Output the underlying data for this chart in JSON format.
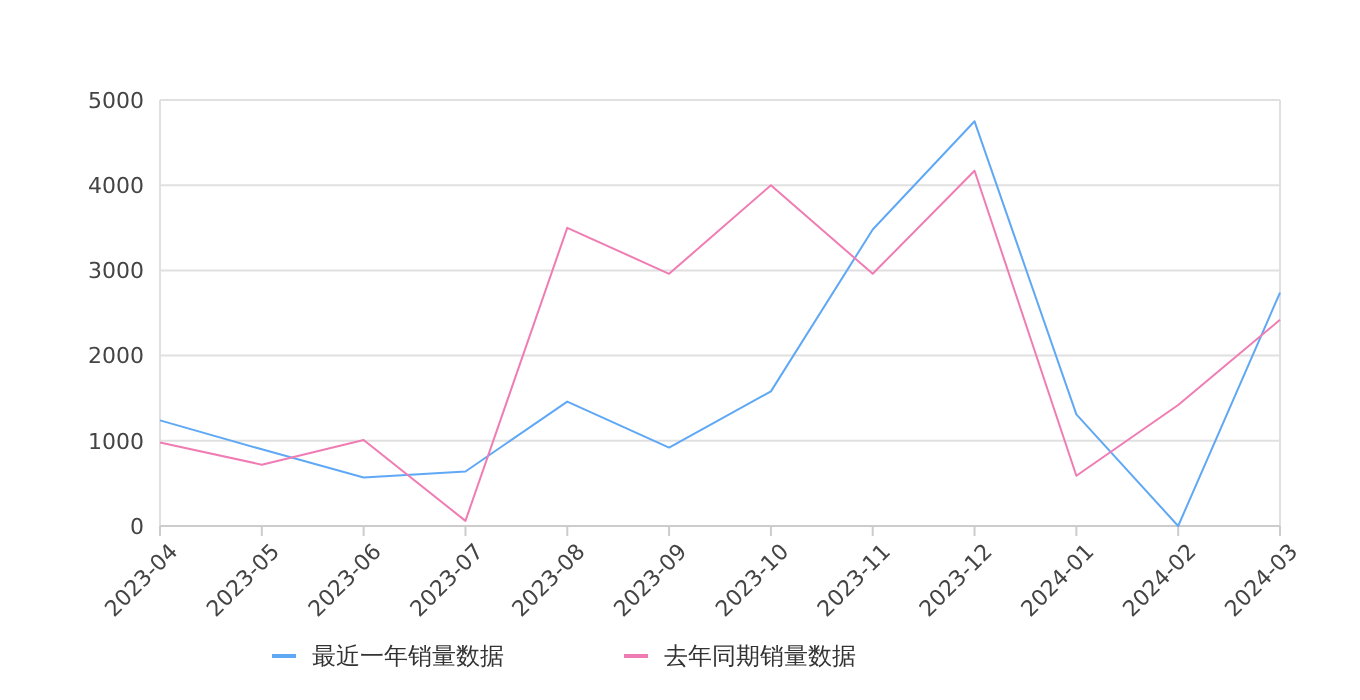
{
  "chart_data": {
    "type": "line",
    "categories": [
      "2023-04",
      "2023-05",
      "2023-06",
      "2023-07",
      "2023-08",
      "2023-09",
      "2023-10",
      "2023-11",
      "2023-12",
      "2024-01",
      "2024-02",
      "2024-03"
    ],
    "series": [
      {
        "name": "最近一年销量数据",
        "color": "#5fa8f5",
        "values": [
          1240,
          900,
          570,
          640,
          1460,
          920,
          1580,
          3480,
          4750,
          1310,
          0,
          2740
        ]
      },
      {
        "name": "去年同期销量数据",
        "color": "#f07cb4",
        "values": [
          980,
          720,
          1010,
          60,
          3500,
          2960,
          4000,
          2960,
          4170,
          590,
          1420,
          2420
        ]
      }
    ],
    "ylim": [
      0,
      5000
    ],
    "yticks": [
      0,
      1000,
      2000,
      3000,
      4000,
      5000
    ],
    "grid": "y",
    "legend": "bottom",
    "marker": "none",
    "line_style": "solid"
  }
}
